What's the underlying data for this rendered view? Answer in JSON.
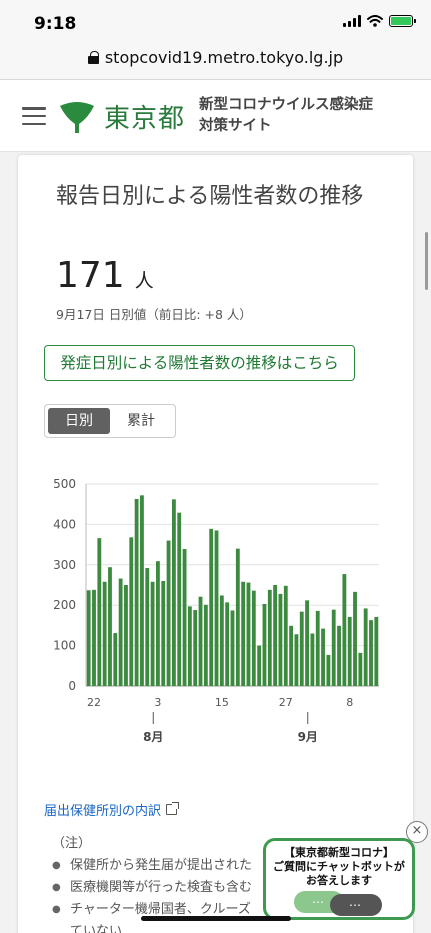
{
  "status_bar": {
    "time": "9:18",
    "battery_color": "#34c759"
  },
  "browser": {
    "url": "stopcovid19.metro.tokyo.lg.jp"
  },
  "header": {
    "logo_text": "東京都",
    "site_title_line1": "新型コロナウイルス感染症",
    "site_title_line2": "対策サイト",
    "brand_color": "#2a7a3c"
  },
  "card": {
    "title": "報告日別による陽性者数の推移",
    "value": "171",
    "unit": "人",
    "date_line": "9月17日 日別値（前日比: +8 人）",
    "link_label": "発症日別による陽性者数の推移はこちら",
    "toggle": {
      "daily": "日別",
      "cumulative": "累計",
      "selected": "daily"
    }
  },
  "chart_data": {
    "type": "bar",
    "bar_color": "#3c8a3f",
    "ylim": [
      0,
      500
    ],
    "y_ticks": [
      0,
      100,
      200,
      300,
      400,
      500
    ],
    "x_tick_labels": [
      {
        "index": 1,
        "label": "22"
      },
      {
        "index": 13,
        "label": "3"
      },
      {
        "index": 25,
        "label": "15"
      },
      {
        "index": 37,
        "label": "27"
      },
      {
        "index": 49,
        "label": "8"
      }
    ],
    "months": [
      {
        "index": 11,
        "label": "8月"
      },
      {
        "index": 40,
        "label": "9月"
      }
    ],
    "values": [
      237,
      238,
      366,
      258,
      294,
      131,
      266,
      250,
      368,
      463,
      472,
      292,
      258,
      309,
      260,
      360,
      462,
      429,
      339,
      197,
      188,
      221,
      201,
      389,
      385,
      224,
      207,
      187,
      340,
      258,
      256,
      236,
      100,
      203,
      238,
      250,
      228,
      248,
      149,
      128,
      184,
      212,
      130,
      186,
      142,
      77,
      189,
      149,
      277,
      171,
      233,
      82,
      192,
      163,
      171
    ]
  },
  "below_chart": {
    "caption": "届出保健所別の内訳",
    "notes_heading": "（注）",
    "notes": [
      "保健所から発生届が提出された",
      "医療機関等が行った検査も含む",
      "チャーター機帰国者、クルーズ"
    ],
    "notes_continuation": "ていない"
  },
  "chatbot": {
    "line1": "【東京都新型コロナ】",
    "line2": "ご質問にチャットボットが",
    "line3": "お答えします",
    "dots": "…",
    "close": "×",
    "border_color": "#3e9a4f"
  }
}
